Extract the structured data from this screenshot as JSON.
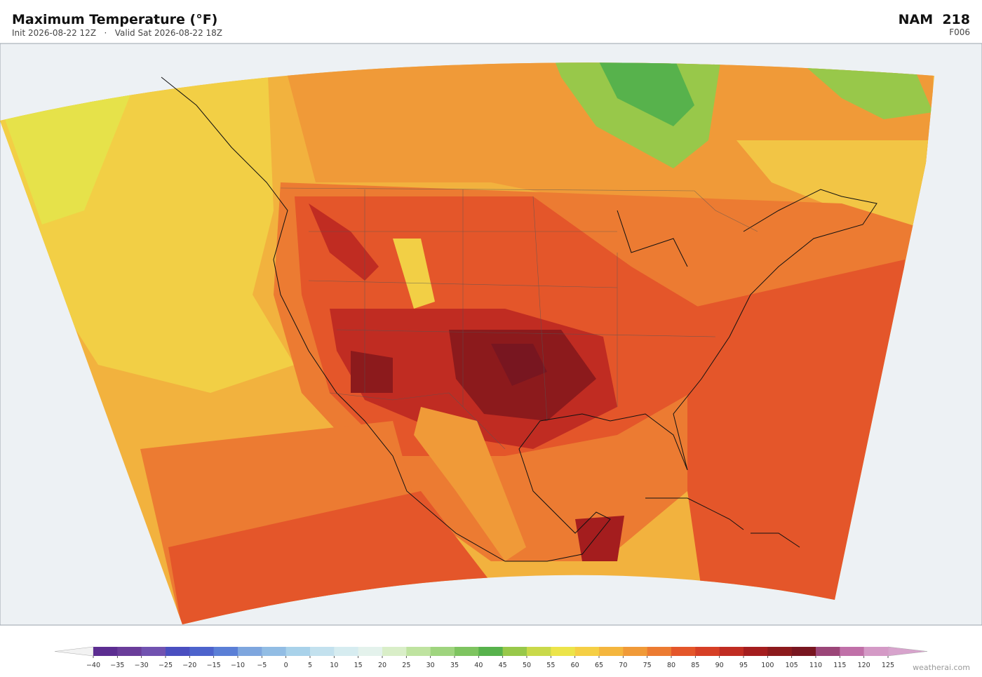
{
  "header": {
    "title": "Maximum Temperature  (°F)",
    "subtitle": "Init 2026-08-22 12Z   ·   Valid Sat 2026-08-22 18Z",
    "model": "NAM  218",
    "forecast_hour": "F006"
  },
  "colorbar": {
    "ticks": [
      {
        "value": -40,
        "label": "−40"
      },
      {
        "value": -35,
        "label": "−35"
      },
      {
        "value": -30,
        "label": "−30"
      },
      {
        "value": -25,
        "label": "−25"
      },
      {
        "value": -20,
        "label": "−20"
      },
      {
        "value": -15,
        "label": "−15"
      },
      {
        "value": -10,
        "label": "−10"
      },
      {
        "value": -5,
        "label": "−5"
      },
      0,
      5,
      10,
      15,
      20,
      25,
      30,
      35,
      40,
      45,
      50,
      55,
      60,
      65,
      70,
      75,
      80,
      85,
      90,
      95,
      100,
      105,
      110,
      115,
      120,
      125
    ],
    "colors": [
      "#5c2d91",
      "#6a3d9a",
      "#7152b0",
      "#4a4fc0",
      "#4d63cc",
      "#5b7fd6",
      "#7ea6de",
      "#92bde4",
      "#a9d2ea",
      "#c3e1ee",
      "#d6ecf0",
      "#e4f2ec",
      "#d9eec8",
      "#bfe3a0",
      "#9fd47e",
      "#7ec460",
      "#57b24c",
      "#98c84a",
      "#c9d94a",
      "#ece44a",
      "#f5cf45",
      "#f4b63e",
      "#f09a38",
      "#ec7b32",
      "#e4562a",
      "#d63f26",
      "#c02c22",
      "#a41d1e",
      "#8c1a1c",
      "#781620",
      "#9b4678",
      "#c070a8",
      "#d49ac6"
    ],
    "under_color": "#f2f2f2",
    "over_color": "#d7a3cc"
  },
  "footer": {
    "watermark": "weatherai.com"
  }
}
